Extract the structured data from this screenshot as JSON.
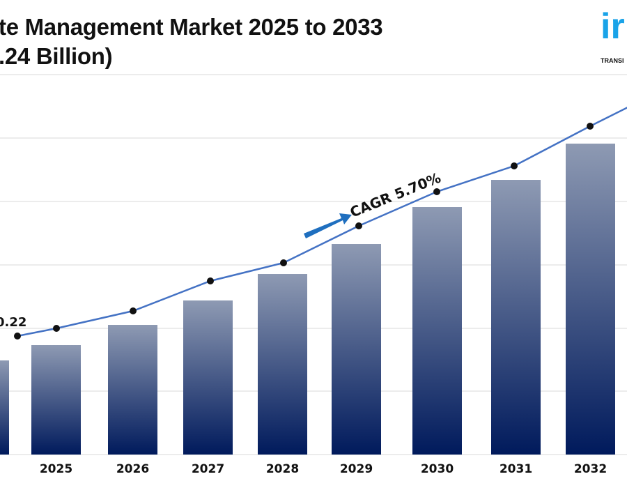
{
  "title_line1": "te Management Market 2025 to 2033",
  "title_line2": ".24 Billion)",
  "logo": {
    "mark": "ir",
    "text": "TRANSI"
  },
  "chart_data": {
    "type": "bar",
    "categories": [
      "",
      "2025",
      "2026",
      "2027",
      "2028",
      "2029",
      "2030",
      "2031",
      "2032"
    ],
    "values": [
      135,
      157,
      186,
      221,
      259,
      302,
      355,
      394,
      446
    ],
    "line_values": [
      170,
      181,
      206,
      249,
      275,
      328,
      377,
      414,
      471
    ],
    "first_label": "0.22",
    "annotation": "CAGR 5.70%",
    "grid": true,
    "bar_color_top": "#8e9ab3",
    "bar_color_bottom": "#001a5c",
    "line_color": "#4472c4",
    "arrow_color": "#1f6fbf"
  }
}
